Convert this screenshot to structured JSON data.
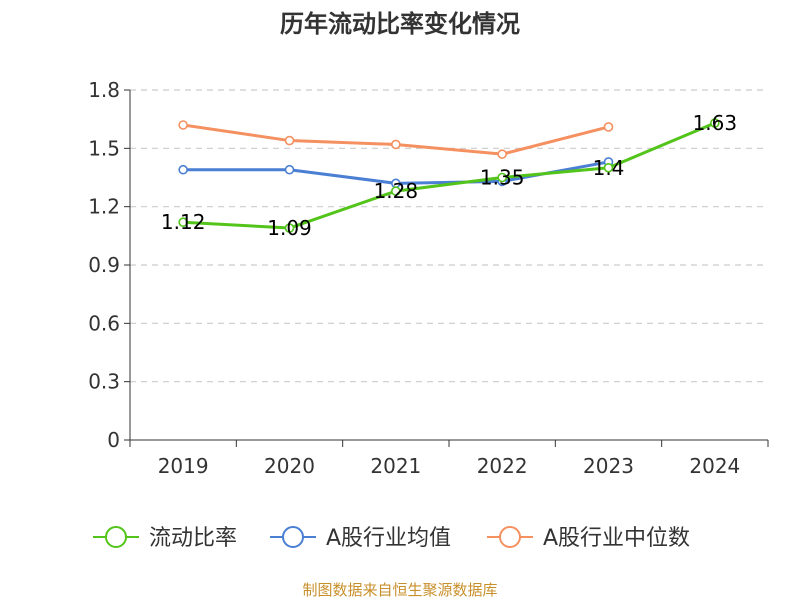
{
  "chart_data": {
    "type": "line",
    "title": "历年流动比率变化情况",
    "categories": [
      "2019",
      "2020",
      "2021",
      "2022",
      "2023",
      "2024"
    ],
    "ylim": [
      0,
      1.8
    ],
    "yticks": [
      "0",
      "0.3",
      "0.6",
      "0.9",
      "1.2",
      "1.5",
      "1.8"
    ],
    "grid": true,
    "legend_position": "bottom",
    "series": [
      {
        "name": "流动比率",
        "color": "#52c41a",
        "values": [
          1.12,
          1.09,
          1.28,
          1.35,
          1.4,
          1.63
        ],
        "labels": [
          "1.12",
          "1.09",
          "1.28",
          "1.35",
          "1.4",
          "1.63"
        ]
      },
      {
        "name": "A股行业均值",
        "color": "#4a7fd4",
        "values": [
          1.39,
          1.39,
          1.32,
          1.33,
          1.43,
          null
        ]
      },
      {
        "name": "A股行业中位数",
        "color": "#f59060",
        "values": [
          1.62,
          1.54,
          1.52,
          1.47,
          1.61,
          null
        ]
      }
    ]
  },
  "source": "制图数据来自恒生聚源数据库"
}
